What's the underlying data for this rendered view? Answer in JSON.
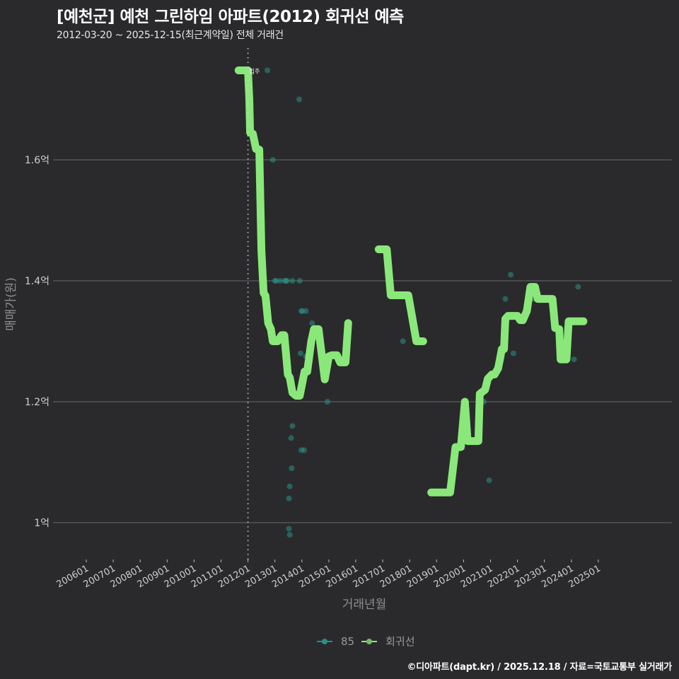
{
  "header": {
    "title": "[예천군] 예천 그린하임 아파트(2012) 회귀선 예측",
    "subtitle": "2012-03-20 ~ 2025-12-15(최근계약일) 전체 거래건"
  },
  "legend": {
    "items": [
      {
        "label": "85",
        "color": "#2a9d8f"
      },
      {
        "label": "회귀선",
        "color": "#8fe57a"
      }
    ]
  },
  "footer": {
    "text": "©디아파트(dapt.kr) / 2025.12.18 / 자료=국토교통부 실거래가"
  },
  "colors": {
    "background": "#2a2a2c",
    "grid": "#5a5a5a",
    "regression": "#8ae87a",
    "scatter": "#2a8f85"
  },
  "chart_data": {
    "type": "line",
    "title": "[예천군] 예천 그린하임 아파트(2012) 회귀선 예측",
    "subtitle": "2012-03-20 ~ 2025-12-15(최근계약일) 전체 거래건",
    "xlabel": "거래년월",
    "ylabel": "매매가(원)",
    "x_ticks": [
      "200601",
      "200701",
      "200801",
      "200901",
      "201001",
      "201101",
      "201201",
      "201301",
      "201401",
      "201501",
      "201601",
      "201701",
      "201801",
      "201901",
      "202001",
      "202101",
      "202201",
      "202301",
      "202401",
      "202501"
    ],
    "y_ticks": [
      {
        "value": 1.0,
        "label": "1억"
      },
      {
        "value": 1.2,
        "label": "1.2억"
      },
      {
        "value": 1.4,
        "label": "1.4억"
      },
      {
        "value": 1.6,
        "label": "1.6억"
      }
    ],
    "ylim": [
      0.94,
      1.77
    ],
    "grid": "horizontal",
    "legend_position": "bottom",
    "annotation": {
      "x": 2012.0,
      "label": "입주",
      "style": "dotted vertical line"
    },
    "series": [
      {
        "name": "회귀선",
        "segments": [
          [
            [
              2011.65,
              1.748
            ],
            [
              2012.0,
              1.748
            ],
            [
              2012.05,
              1.7
            ],
            [
              2012.08,
              1.645
            ],
            [
              2012.18,
              1.643
            ],
            [
              2012.3,
              1.618
            ],
            [
              2012.42,
              1.617
            ],
            [
              2012.5,
              1.45
            ],
            [
              2012.58,
              1.38
            ],
            [
              2012.65,
              1.375
            ],
            [
              2012.75,
              1.33
            ],
            [
              2012.85,
              1.32
            ],
            [
              2012.92,
              1.3
            ],
            [
              2013.1,
              1.3
            ],
            [
              2013.25,
              1.31
            ],
            [
              2013.35,
              1.31
            ],
            [
              2013.48,
              1.245
            ],
            [
              2013.55,
              1.24
            ],
            [
              2013.65,
              1.215
            ],
            [
              2013.78,
              1.21
            ],
            [
              2013.92,
              1.21
            ],
            [
              2014.1,
              1.25
            ],
            [
              2014.2,
              1.25
            ],
            [
              2014.35,
              1.3
            ],
            [
              2014.45,
              1.32
            ],
            [
              2014.62,
              1.32
            ],
            [
              2014.85,
              1.237
            ],
            [
              2015.0,
              1.275
            ],
            [
              2015.12,
              1.277
            ],
            [
              2015.3,
              1.277
            ],
            [
              2015.42,
              1.265
            ],
            [
              2015.62,
              1.265
            ],
            [
              2015.72,
              1.33
            ]
          ],
          [
            [
              2016.85,
              1.452
            ],
            [
              2017.15,
              1.452
            ],
            [
              2017.3,
              1.376
            ],
            [
              2017.5,
              1.376
            ],
            [
              2017.95,
              1.376
            ],
            [
              2018.25,
              1.3
            ],
            [
              2018.5,
              1.3
            ]
          ],
          [
            [
              2018.8,
              1.05
            ],
            [
              2019.5,
              1.05
            ],
            [
              2019.7,
              1.125
            ],
            [
              2019.9,
              1.125
            ],
            [
              2020.05,
              1.2
            ],
            [
              2020.15,
              1.135
            ],
            [
              2020.55,
              1.135
            ],
            [
              2020.6,
              1.213
            ],
            [
              2020.8,
              1.22
            ],
            [
              2020.9,
              1.238
            ],
            [
              2021.05,
              1.245
            ],
            [
              2021.15,
              1.245
            ],
            [
              2021.28,
              1.255
            ],
            [
              2021.35,
              1.27
            ],
            [
              2021.42,
              1.287
            ],
            [
              2021.5,
              1.287
            ],
            [
              2021.55,
              1.337
            ],
            [
              2021.65,
              1.342
            ],
            [
              2021.85,
              1.342
            ],
            [
              2022.0,
              1.342
            ],
            [
              2022.1,
              1.335
            ],
            [
              2022.2,
              1.335
            ],
            [
              2022.35,
              1.35
            ],
            [
              2022.48,
              1.39
            ],
            [
              2022.65,
              1.39
            ],
            [
              2022.75,
              1.37
            ],
            [
              2023.05,
              1.37
            ],
            [
              2023.3,
              1.37
            ],
            [
              2023.4,
              1.322
            ],
            [
              2023.55,
              1.32
            ],
            [
              2023.6,
              1.27
            ],
            [
              2023.82,
              1.27
            ],
            [
              2023.9,
              1.333
            ],
            [
              2024.0,
              1.333
            ],
            [
              2024.45,
              1.333
            ]
          ]
        ]
      },
      {
        "name": "85",
        "points": [
          [
            2012.72,
            1.748
          ],
          [
            2013.9,
            1.7
          ],
          [
            2012.92,
            1.6
          ],
          [
            2013.38,
            1.4
          ],
          [
            2013.4,
            1.4
          ],
          [
            2013.45,
            1.4
          ],
          [
            2013.0,
            1.4
          ],
          [
            2013.05,
            1.4
          ],
          [
            2013.2,
            1.4
          ],
          [
            2013.65,
            1.4
          ],
          [
            2013.92,
            1.4
          ],
          [
            2013.98,
            1.35
          ],
          [
            2014.02,
            1.35
          ],
          [
            2014.15,
            1.35
          ],
          [
            2014.38,
            1.33
          ],
          [
            2013.95,
            1.28
          ],
          [
            2014.15,
            1.275
          ],
          [
            2014.95,
            1.2
          ],
          [
            2013.98,
            1.12
          ],
          [
            2014.08,
            1.12
          ],
          [
            2013.65,
            1.16
          ],
          [
            2013.6,
            1.14
          ],
          [
            2013.62,
            1.09
          ],
          [
            2013.55,
            1.06
          ],
          [
            2013.52,
            1.04
          ],
          [
            2013.52,
            0.99
          ],
          [
            2013.55,
            0.98
          ],
          [
            2017.1,
            1.452
          ],
          [
            2017.75,
            1.3
          ],
          [
            2020.95,
            1.07
          ],
          [
            2020.75,
            1.2
          ],
          [
            2021.55,
            1.37
          ],
          [
            2021.85,
            1.28
          ],
          [
            2021.75,
            1.41
          ],
          [
            2022.55,
            1.37
          ],
          [
            2024.25,
            1.39
          ],
          [
            2024.1,
            1.27
          ]
        ]
      }
    ]
  }
}
